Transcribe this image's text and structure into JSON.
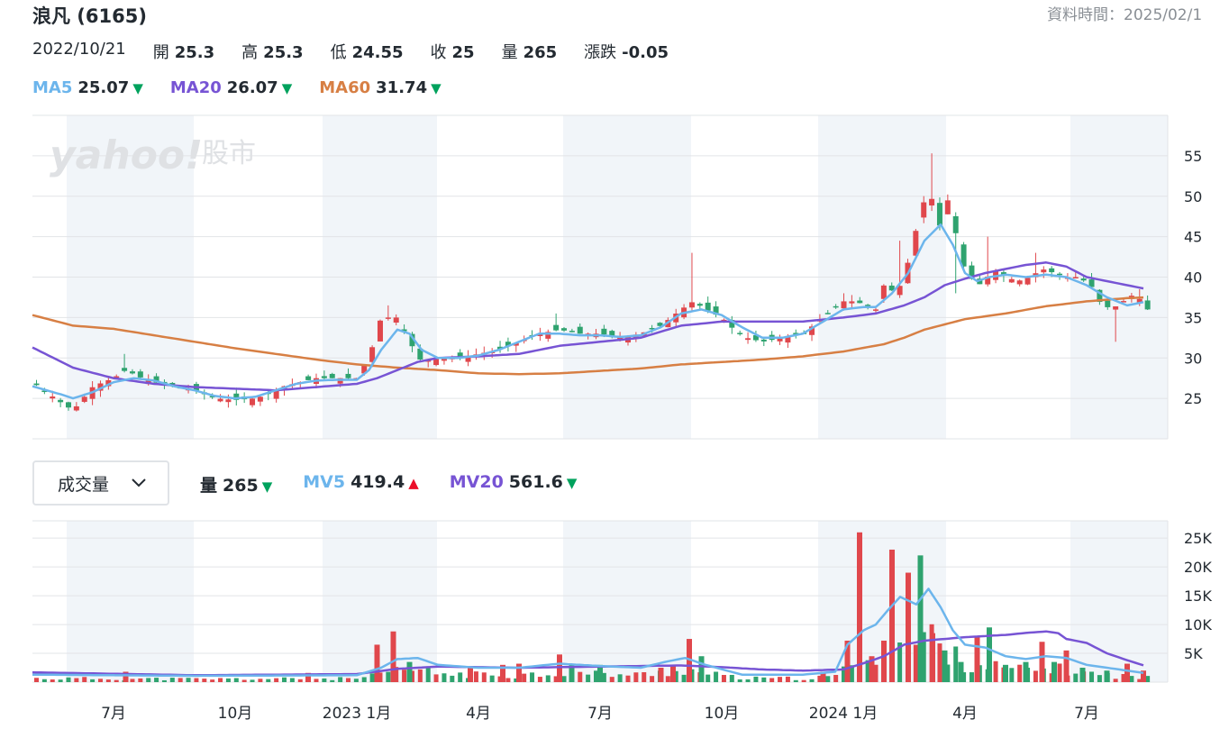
{
  "header": {
    "title": "浪凡 (6165)",
    "data_time": "資料時間：2025/02/1"
  },
  "ohlc": {
    "date": "2022/10/21",
    "open_label": "開",
    "open": "25.3",
    "high_label": "高",
    "high": "25.3",
    "low_label": "低",
    "low": "24.55",
    "close_label": "收",
    "close": "25",
    "volume_label": "量",
    "volume": "265",
    "change_label": "漲跌",
    "change": "-0.05"
  },
  "ma_legend": [
    {
      "name": "MA5",
      "value": "25.07",
      "color": "#6cb5ec",
      "direction": "down"
    },
    {
      "name": "MA20",
      "value": "26.07",
      "color": "#7754d4",
      "direction": "down"
    },
    {
      "name": "MA60",
      "value": "31.74",
      "color": "#d77f44",
      "direction": "down"
    }
  ],
  "volume_panel": {
    "selector_label": "成交量",
    "legend": [
      {
        "name": "量",
        "value": "265",
        "color": "#232a31",
        "direction": "down"
      },
      {
        "name": "MV5",
        "value": "419.4",
        "color": "#6cb5ec",
        "direction": "up"
      },
      {
        "name": "MV20",
        "value": "561.6",
        "color": "#7754d4",
        "direction": "down"
      }
    ]
  },
  "watermark": {
    "brand": "yahoo!",
    "section": "股市"
  },
  "colors": {
    "up": "#e0474c",
    "down": "#2fa36f",
    "ma5": "#6cb5ec",
    "ma20": "#7754d4",
    "ma60": "#d77f44",
    "band": "#f1f5f9",
    "grid": "#e2e4e7"
  },
  "chart_data": [
    {
      "type": "candlestick",
      "name": "price",
      "x_start": "2022-05",
      "x_end": "2024-09",
      "ylim": [
        20,
        60
      ],
      "y_ticks": [
        "25",
        "30",
        "35",
        "40",
        "45",
        "50",
        "55"
      ],
      "x_ticks": [
        {
          "label": "7月",
          "month": 2
        },
        {
          "label": "10月",
          "month": 5
        },
        {
          "label": "2023 1月",
          "month": 8
        },
        {
          "label": "4月",
          "month": 11
        },
        {
          "label": "7月",
          "month": 14
        },
        {
          "label": "10月",
          "month": 17
        },
        {
          "label": "2024 1月",
          "month": 20
        },
        {
          "label": "4月",
          "month": 23
        },
        {
          "label": "7月",
          "month": 26
        }
      ],
      "close_path": [
        [
          0,
          27
        ],
        [
          0.7,
          24.5
        ],
        [
          1.0,
          23.5
        ],
        [
          1.5,
          26.5
        ],
        [
          2.0,
          27.5
        ],
        [
          2.3,
          28.5
        ],
        [
          2.7,
          27.5
        ],
        [
          3.0,
          27
        ],
        [
          3.5,
          26.5
        ],
        [
          4.0,
          26
        ],
        [
          4.5,
          25
        ],
        [
          5.0,
          24.8
        ],
        [
          5.5,
          25
        ],
        [
          5.8,
          25.5
        ],
        [
          6.2,
          26.5
        ],
        [
          6.6,
          27
        ],
        [
          7.0,
          27.5
        ],
        [
          7.5,
          27.5
        ],
        [
          8.0,
          27.5
        ],
        [
          8.3,
          30
        ],
        [
          8.6,
          35
        ],
        [
          9.0,
          35
        ],
        [
          9.3,
          32
        ],
        [
          9.6,
          29.5
        ],
        [
          10.0,
          30
        ],
        [
          10.5,
          30
        ],
        [
          11.0,
          30.5
        ],
        [
          11.5,
          31
        ],
        [
          12.0,
          32
        ],
        [
          12.5,
          33
        ],
        [
          13.0,
          33.5
        ],
        [
          13.5,
          33
        ],
        [
          14.0,
          33
        ],
        [
          14.5,
          32.5
        ],
        [
          15.0,
          33
        ],
        [
          15.5,
          34
        ],
        [
          16.0,
          36
        ],
        [
          16.3,
          37
        ],
        [
          16.6,
          36
        ],
        [
          17.0,
          35
        ],
        [
          17.3,
          33.5
        ],
        [
          17.6,
          32.5
        ],
        [
          18.0,
          32
        ],
        [
          18.5,
          32.5
        ],
        [
          19.0,
          33
        ],
        [
          19.5,
          35
        ],
        [
          20.0,
          37
        ],
        [
          20.3,
          37
        ],
        [
          20.8,
          36
        ],
        [
          21.0,
          39
        ],
        [
          21.3,
          38
        ],
        [
          21.5,
          40
        ],
        [
          21.9,
          48
        ],
        [
          22.1,
          51
        ],
        [
          22.4,
          46
        ],
        [
          22.6,
          50
        ],
        [
          22.9,
          42
        ],
        [
          23.1,
          40
        ],
        [
          23.4,
          39
        ],
        [
          23.7,
          41
        ],
        [
          24.0,
          40
        ],
        [
          24.3,
          39.5
        ],
        [
          24.6,
          40
        ],
        [
          24.9,
          41
        ],
        [
          25.2,
          40.5
        ],
        [
          25.5,
          40
        ],
        [
          25.8,
          40
        ],
        [
          26.1,
          39
        ],
        [
          26.3,
          37
        ],
        [
          26.6,
          36
        ],
        [
          26.9,
          37
        ],
        [
          27.2,
          38
        ],
        [
          27.5,
          36
        ]
      ],
      "ma5_path": [
        [
          0,
          26.5
        ],
        [
          0.7,
          25.5
        ],
        [
          1.0,
          25
        ],
        [
          1.5,
          25.8
        ],
        [
          2.0,
          27
        ],
        [
          2.5,
          27.5
        ],
        [
          3.0,
          27.2
        ],
        [
          3.5,
          26.5
        ],
        [
          4.0,
          26
        ],
        [
          4.5,
          25.3
        ],
        [
          5.0,
          25
        ],
        [
          5.5,
          25.2
        ],
        [
          6.0,
          26
        ],
        [
          6.5,
          26.8
        ],
        [
          7.0,
          27.2
        ],
        [
          7.5,
          27.3
        ],
        [
          8.0,
          27.3
        ],
        [
          8.3,
          28.5
        ],
        [
          8.6,
          31
        ],
        [
          9.0,
          33.5
        ],
        [
          9.3,
          33
        ],
        [
          9.6,
          31
        ],
        [
          10.0,
          30
        ],
        [
          10.5,
          30
        ],
        [
          11.0,
          30.3
        ],
        [
          11.5,
          31
        ],
        [
          12.0,
          32
        ],
        [
          12.5,
          33
        ],
        [
          13.0,
          33
        ],
        [
          13.5,
          32.8
        ],
        [
          14.0,
          32.8
        ],
        [
          14.5,
          32.6
        ],
        [
          15.0,
          32.8
        ],
        [
          15.5,
          33.8
        ],
        [
          16.0,
          35.5
        ],
        [
          16.5,
          36
        ],
        [
          17.0,
          35.3
        ],
        [
          17.5,
          33.8
        ],
        [
          18.0,
          32.5
        ],
        [
          18.5,
          32.5
        ],
        [
          19.0,
          33
        ],
        [
          19.5,
          34.5
        ],
        [
          20.0,
          36
        ],
        [
          20.5,
          36.3
        ],
        [
          20.8,
          36.3
        ],
        [
          21.2,
          38
        ],
        [
          21.6,
          40.5
        ],
        [
          22.0,
          44.5
        ],
        [
          22.4,
          46.5
        ],
        [
          22.7,
          44
        ],
        [
          23.0,
          40.5
        ],
        [
          23.3,
          39.5
        ],
        [
          23.6,
          40
        ],
        [
          24.0,
          40.3
        ],
        [
          24.5,
          40
        ],
        [
          25.0,
          40.3
        ],
        [
          25.5,
          40
        ],
        [
          26.0,
          39
        ],
        [
          26.5,
          37.5
        ],
        [
          27.0,
          36.5
        ],
        [
          27.5,
          37
        ]
      ],
      "ma20_path": [
        [
          0,
          31.3
        ],
        [
          1.0,
          28.8
        ],
        [
          2.0,
          27.5
        ],
        [
          3.0,
          26.8
        ],
        [
          4.0,
          26.4
        ],
        [
          5.0,
          26.2
        ],
        [
          6.0,
          26
        ],
        [
          6.5,
          26.2
        ],
        [
          7.0,
          26.4
        ],
        [
          8.0,
          26.8
        ],
        [
          8.5,
          27.5
        ],
        [
          9.0,
          28.5
        ],
        [
          9.5,
          29.5
        ],
        [
          10.0,
          30
        ],
        [
          11.0,
          30.2
        ],
        [
          12.0,
          30.5
        ],
        [
          13.0,
          31.5
        ],
        [
          14.0,
          32
        ],
        [
          15.0,
          32.5
        ],
        [
          16.0,
          34
        ],
        [
          17.0,
          34.5
        ],
        [
          18.0,
          34.5
        ],
        [
          19.0,
          34.5
        ],
        [
          20.0,
          35
        ],
        [
          20.8,
          35.5
        ],
        [
          21.5,
          36.5
        ],
        [
          22.0,
          37.5
        ],
        [
          22.5,
          39
        ],
        [
          23.0,
          39.8
        ],
        [
          23.5,
          40.5
        ],
        [
          24.0,
          41
        ],
        [
          24.5,
          41.5
        ],
        [
          25.0,
          41.8
        ],
        [
          25.5,
          41.3
        ],
        [
          26.0,
          40
        ],
        [
          26.5,
          39.5
        ],
        [
          27.0,
          39
        ],
        [
          27.5,
          38.5
        ]
      ],
      "ma60_path": [
        [
          0,
          35.3
        ],
        [
          1.0,
          34
        ],
        [
          2.0,
          33.6
        ],
        [
          3.0,
          32.8
        ],
        [
          4.0,
          32
        ],
        [
          5.0,
          31.2
        ],
        [
          6.0,
          30.5
        ],
        [
          7.0,
          29.8
        ],
        [
          8.0,
          29.2
        ],
        [
          9.0,
          28.8
        ],
        [
          10.0,
          28.5
        ],
        [
          11.0,
          28.1
        ],
        [
          12.0,
          28
        ],
        [
          13.0,
          28.1
        ],
        [
          14.0,
          28.4
        ],
        [
          15.0,
          28.7
        ],
        [
          16.0,
          29.2
        ],
        [
          17.0,
          29.5
        ],
        [
          18.0,
          29.8
        ],
        [
          19.0,
          30.2
        ],
        [
          20.0,
          30.8
        ],
        [
          21.0,
          31.7
        ],
        [
          21.5,
          32.5
        ],
        [
          22.0,
          33.5
        ],
        [
          23.0,
          34.8
        ],
        [
          24.0,
          35.5
        ],
        [
          25.0,
          36.4
        ],
        [
          26.0,
          37
        ],
        [
          27.0,
          37.4
        ],
        [
          27.5,
          37.5
        ]
      ],
      "spikes": [
        [
          2.2,
          30.5
        ],
        [
          8.7,
          36.5
        ],
        [
          13.0,
          35.5
        ],
        [
          16.3,
          43
        ],
        [
          20.0,
          38
        ],
        [
          21.4,
          44.5
        ],
        [
          22.1,
          55.3
        ],
        [
          22.8,
          38
        ],
        [
          23.6,
          45
        ],
        [
          24.8,
          43
        ],
        [
          26.2,
          40.5
        ],
        [
          26.7,
          32
        ],
        [
          27.3,
          38.5
        ]
      ]
    },
    {
      "type": "bar",
      "name": "volume",
      "x_start": "2022-05",
      "x_end": "2024-09",
      "ylim": [
        0,
        28000
      ],
      "y_ticks": [
        "5K",
        "10K",
        "15K",
        "20K",
        "25K"
      ],
      "bars": [
        [
          2.3,
          1800,
          "up"
        ],
        [
          6.8,
          1600,
          "up"
        ],
        [
          8.5,
          6500,
          "up"
        ],
        [
          8.9,
          8800,
          "up"
        ],
        [
          9.3,
          3500,
          "down"
        ],
        [
          10.8,
          2500,
          "up"
        ],
        [
          11.6,
          3000,
          "up"
        ],
        [
          12.0,
          3200,
          "up"
        ],
        [
          13.0,
          4800,
          "up"
        ],
        [
          13.3,
          3200,
          "down"
        ],
        [
          14.0,
          3000,
          "down"
        ],
        [
          15.5,
          2500,
          "up"
        ],
        [
          15.8,
          3000,
          "up"
        ],
        [
          16.2,
          7500,
          "up"
        ],
        [
          16.5,
          4500,
          "down"
        ],
        [
          19.5,
          1800,
          "up"
        ],
        [
          20.1,
          7200,
          "up"
        ],
        [
          20.4,
          26000,
          "up"
        ],
        [
          20.7,
          4500,
          "up"
        ],
        [
          21.0,
          7200,
          "up"
        ],
        [
          21.2,
          23000,
          "up"
        ],
        [
          21.6,
          19000,
          "up"
        ],
        [
          21.9,
          22000,
          "down"
        ],
        [
          22.2,
          8500,
          "up"
        ],
        [
          22.5,
          5500,
          "down"
        ],
        [
          22.9,
          3500,
          "down"
        ],
        [
          23.3,
          8000,
          "up"
        ],
        [
          23.6,
          9500,
          "down"
        ],
        [
          24.0,
          3000,
          "down"
        ],
        [
          24.5,
          3500,
          "down"
        ],
        [
          24.9,
          7000,
          "up"
        ],
        [
          25.2,
          3500,
          "down"
        ],
        [
          25.5,
          5500,
          "up"
        ],
        [
          25.9,
          2500,
          "down"
        ],
        [
          26.5,
          2000,
          "down"
        ],
        [
          27.0,
          3200,
          "up"
        ],
        [
          27.4,
          2000,
          "up"
        ]
      ],
      "mv5_path": [
        [
          0,
          1300
        ],
        [
          4.0,
          1100
        ],
        [
          8.0,
          1200
        ],
        [
          8.6,
          2500
        ],
        [
          9.0,
          4000
        ],
        [
          9.5,
          4200
        ],
        [
          10.0,
          3000
        ],
        [
          11.0,
          2500
        ],
        [
          12.0,
          2500
        ],
        [
          13.0,
          3200
        ],
        [
          14.0,
          2800
        ],
        [
          15.0,
          2500
        ],
        [
          15.6,
          3500
        ],
        [
          16.1,
          4200
        ],
        [
          16.6,
          3000
        ],
        [
          17.5,
          1300
        ],
        [
          19.0,
          1300
        ],
        [
          19.8,
          1800
        ],
        [
          20.1,
          6500
        ],
        [
          20.5,
          9000
        ],
        [
          20.8,
          10000
        ],
        [
          21.1,
          12500
        ],
        [
          21.4,
          14800
        ],
        [
          21.8,
          13500
        ],
        [
          22.1,
          16200
        ],
        [
          22.4,
          13000
        ],
        [
          22.7,
          9000
        ],
        [
          23.0,
          6500
        ],
        [
          23.5,
          6000
        ],
        [
          24.0,
          4500
        ],
        [
          24.5,
          4000
        ],
        [
          25.0,
          4500
        ],
        [
          25.5,
          4200
        ],
        [
          26.0,
          3000
        ],
        [
          26.5,
          2500
        ],
        [
          27.0,
          2000
        ],
        [
          27.5,
          1500
        ]
      ],
      "mv20_path": [
        [
          0,
          1700
        ],
        [
          4.0,
          1200
        ],
        [
          8.0,
          1400
        ],
        [
          9.0,
          2300
        ],
        [
          10.0,
          2700
        ],
        [
          12.0,
          2500
        ],
        [
          14.0,
          2700
        ],
        [
          16.0,
          2900
        ],
        [
          17.0,
          2600
        ],
        [
          18.0,
          2200
        ],
        [
          19.0,
          2000
        ],
        [
          20.0,
          2200
        ],
        [
          20.6,
          3500
        ],
        [
          21.0,
          4500
        ],
        [
          21.5,
          6500
        ],
        [
          22.0,
          7200
        ],
        [
          22.5,
          7500
        ],
        [
          23.0,
          7800
        ],
        [
          23.5,
          8000
        ],
        [
          24.0,
          8200
        ],
        [
          24.6,
          8600
        ],
        [
          25.0,
          8800
        ],
        [
          25.3,
          8500
        ],
        [
          25.5,
          7500
        ],
        [
          26.0,
          6800
        ],
        [
          26.5,
          5000
        ],
        [
          27.0,
          3800
        ],
        [
          27.5,
          2700
        ]
      ]
    }
  ]
}
